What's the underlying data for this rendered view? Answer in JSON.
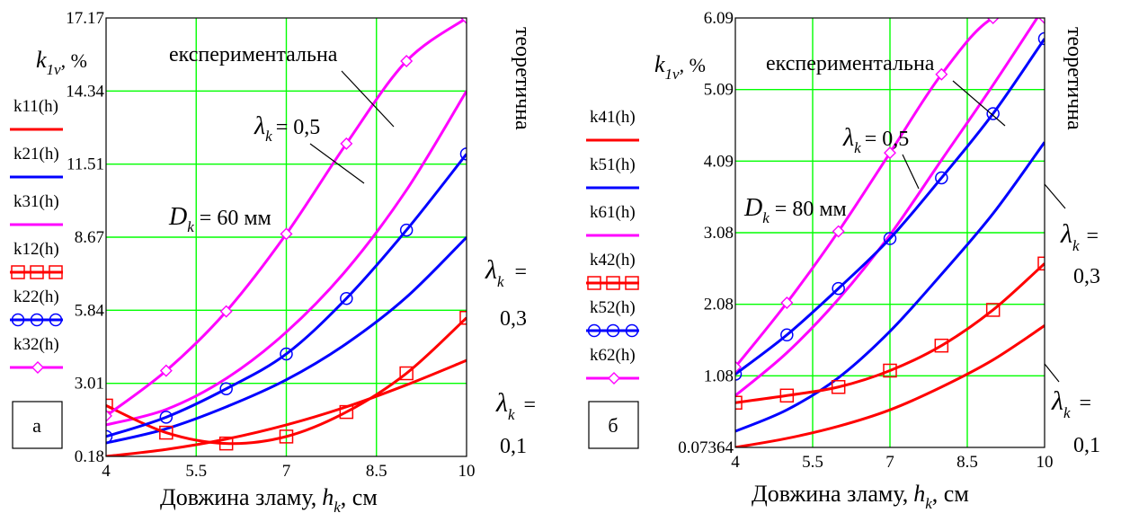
{
  "chart_data": [
    {
      "type": "line",
      "xlabel_prefix": "Довжина зламу,",
      "xlabel_sym": "h",
      "xlabel_sub": "k",
      "xlabel_unit": ", см",
      "ylabel_sym": "k",
      "ylabel_sub": "1v",
      "ylabel_unit": ", %",
      "xlim": [
        4,
        10
      ],
      "ylim": [
        0.18,
        17.17
      ],
      "x_ticks": [
        "4",
        "5.5",
        "7",
        "8.5",
        "10"
      ],
      "y_ticks": [
        "0.18",
        "3.01",
        "5.84",
        "8.67",
        "11.51",
        "14.34",
        "17.17"
      ],
      "panel_label": "а",
      "annotations": {
        "experimental": "експериментальна",
        "theoretical": "теоретична",
        "diameter": "= 60 мм",
        "diameter_sym": "D",
        "diameter_sub": "k",
        "lambda_sym": "λ",
        "lambda_sub": "k",
        "lambda_05": "= 0,5",
        "lambda_03_eq": "=",
        "lambda_03_val": "0,3",
        "lambda_01_eq": "=",
        "lambda_01_val": "0,1"
      },
      "series": [
        {
          "name": "k11(h)",
          "color": "#ff0000",
          "marker": "none",
          "x": [
            4,
            5,
            6,
            7,
            8,
            9,
            10
          ],
          "y": [
            0.18,
            0.45,
            0.85,
            1.4,
            2.1,
            2.95,
            3.9
          ]
        },
        {
          "name": "k21(h)",
          "color": "#0000ff",
          "marker": "none",
          "x": [
            4,
            5,
            6,
            7,
            8,
            9,
            10
          ],
          "y": [
            0.7,
            1.25,
            2.1,
            3.15,
            4.55,
            6.35,
            8.67
          ]
        },
        {
          "name": "k31(h)",
          "color": "#ff00ff",
          "marker": "none",
          "x": [
            4,
            5,
            6,
            7,
            8,
            9,
            10
          ],
          "y": [
            1.4,
            2.0,
            3.2,
            5.0,
            7.4,
            10.5,
            14.34
          ]
        },
        {
          "name": "k12(h)",
          "color": "#ff0000",
          "marker": "square",
          "x": [
            4,
            5,
            6,
            7,
            8,
            9,
            10
          ],
          "y": [
            2.15,
            1.1,
            0.68,
            0.95,
            1.9,
            3.4,
            5.55
          ]
        },
        {
          "name": "k22(h)",
          "color": "#0000ff",
          "marker": "circle",
          "x": [
            4,
            5,
            6,
            7,
            8,
            9,
            10
          ],
          "y": [
            0.95,
            1.7,
            2.8,
            4.15,
            6.3,
            8.95,
            11.9
          ]
        },
        {
          "name": "k32(h)",
          "color": "#ff00ff",
          "marker": "diamond",
          "x": [
            4,
            5,
            6,
            7,
            8,
            9,
            10
          ],
          "y": [
            1.75,
            3.5,
            5.8,
            8.8,
            12.3,
            15.5,
            17.17
          ]
        }
      ]
    },
    {
      "type": "line",
      "xlabel_prefix": "Довжина зламу,",
      "xlabel_sym": "h",
      "xlabel_sub": "k",
      "xlabel_unit": ", см",
      "ylabel_sym": "k",
      "ylabel_sub": "1v",
      "ylabel_unit": ", %",
      "xlim": [
        4,
        10
      ],
      "ylim": [
        0.07364,
        6.09
      ],
      "x_ticks": [
        "4",
        "5.5",
        "7",
        "8.5",
        "10"
      ],
      "y_ticks": [
        "0.07364",
        "1.08",
        "2.08",
        "3.08",
        "4.09",
        "5.09",
        "6.09"
      ],
      "panel_label": "б",
      "annotations": {
        "experimental": "експериментальна",
        "theoretical": "теоретична",
        "diameter": "= 80 мм",
        "diameter_sym": "D",
        "diameter_sub": "k",
        "lambda_sym": "λ",
        "lambda_sub": "k",
        "lambda_05": "= 0,5",
        "lambda_03_eq": "=",
        "lambda_03_val": "0,3",
        "lambda_01_eq": "=",
        "lambda_01_val": "0,1"
      },
      "series": [
        {
          "name": "k41(h)",
          "color": "#ff0000",
          "marker": "none",
          "x": [
            4,
            5,
            6,
            7,
            8,
            9,
            10
          ],
          "y": [
            0.07364,
            0.2,
            0.37,
            0.6,
            0.92,
            1.3,
            1.78
          ]
        },
        {
          "name": "k51(h)",
          "color": "#0000ff",
          "marker": "none",
          "x": [
            4,
            5,
            6,
            7,
            8,
            9,
            10
          ],
          "y": [
            0.3,
            0.6,
            1.05,
            1.7,
            2.5,
            3.35,
            4.35
          ]
        },
        {
          "name": "k61(h)",
          "color": "#ff00ff",
          "marker": "none",
          "x": [
            4,
            5,
            6,
            7,
            8,
            9,
            10
          ],
          "y": [
            0.8,
            1.4,
            2.15,
            3.05,
            4.1,
            5.15,
            6.25
          ]
        },
        {
          "name": "k42(h)",
          "color": "#ff0000",
          "marker": "square",
          "x": [
            4,
            5,
            6,
            7,
            8,
            9,
            10
          ],
          "y": [
            0.7,
            0.8,
            0.92,
            1.15,
            1.5,
            2.0,
            2.65
          ]
        },
        {
          "name": "k52(h)",
          "color": "#0000ff",
          "marker": "circle",
          "x": [
            4,
            5,
            6,
            7,
            8,
            9,
            10
          ],
          "y": [
            1.1,
            1.65,
            2.3,
            3.0,
            3.85,
            4.75,
            5.8
          ]
        },
        {
          "name": "k62(h)",
          "color": "#ff00ff",
          "marker": "diamond",
          "x": [
            4,
            5,
            6,
            7,
            8,
            9,
            10
          ],
          "y": [
            1.2,
            2.1,
            3.1,
            4.2,
            5.3,
            6.09,
            6.09
          ]
        }
      ]
    }
  ]
}
